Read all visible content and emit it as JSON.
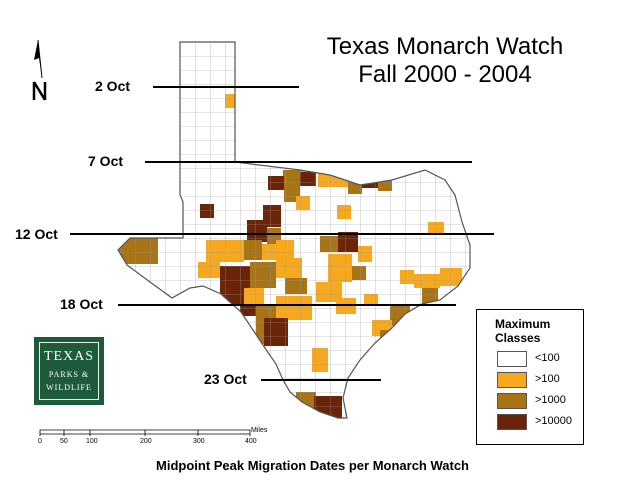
{
  "title": {
    "line1": "Texas Monarch Watch",
    "line2": "Fall 2000 - 2004"
  },
  "footer": "Midpoint Peak Migration Dates per Monarch Watch",
  "dates": [
    {
      "label": "2 Oct"
    },
    {
      "label": "7 Oct"
    },
    {
      "label": "12 Oct"
    },
    {
      "label": "18 Oct"
    },
    {
      "label": "23 Oct"
    }
  ],
  "legend": {
    "title": "Maximum Classes",
    "items": [
      {
        "label": "<100",
        "color": "#ffffff"
      },
      {
        "label": ">100",
        "color": "#f7a81d"
      },
      {
        "label": ">1000",
        "color": "#a87416"
      },
      {
        "label": ">10000",
        "color": "#6b2407"
      }
    ]
  },
  "logo": {
    "line1": "TEXAS",
    "line2": "PARKS &",
    "line3": "WILDLIFE"
  },
  "scale": {
    "ticks": [
      "0",
      "50",
      "100",
      "200",
      "300",
      "400"
    ],
    "unit": "Miles"
  },
  "north_label": "N"
}
